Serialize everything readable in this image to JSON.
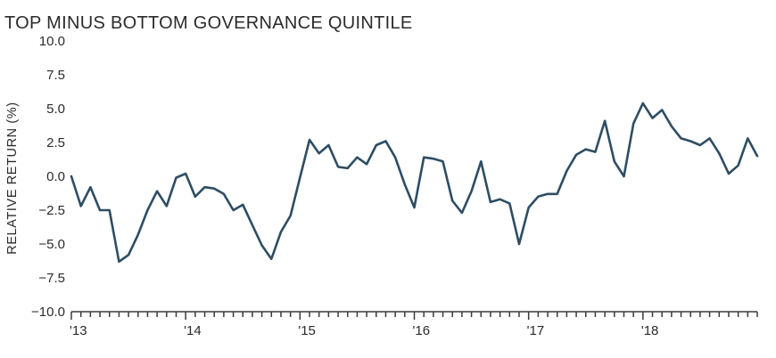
{
  "chart_data": {
    "type": "line",
    "title": "TOP MINUS BOTTOM GOVERNANCE QUINTILE",
    "xlabel": "",
    "ylabel": "RELATIVE RETURN (%)",
    "ylim": [
      -10.0,
      10.0
    ],
    "yticks": [
      "10.0",
      "7.5",
      "5.0",
      "2.5",
      "0.0",
      "−2.5",
      "−5.0",
      "−7.5",
      "−10.0"
    ],
    "ytick_values": [
      10.0,
      7.5,
      5.0,
      2.5,
      0.0,
      -2.5,
      -5.0,
      -7.5,
      -10.0
    ],
    "xtick_labels": [
      "'13",
      "'14",
      "'15",
      "'16",
      "'17",
      "'18"
    ],
    "xtick_label_index": [
      0,
      12,
      24,
      36,
      48,
      60
    ],
    "line_color": "#2e4d63",
    "series": [
      {
        "name": "Top minus bottom governance quintile",
        "values": [
          0.0,
          -2.2,
          -0.8,
          -2.5,
          -2.5,
          -6.3,
          -5.8,
          -4.3,
          -2.5,
          -1.1,
          -2.2,
          -0.1,
          0.2,
          -1.5,
          -0.8,
          -0.9,
          -1.3,
          -2.5,
          -2.1,
          -3.6,
          -5.1,
          -6.1,
          -4.1,
          -2.9,
          -0.1,
          2.7,
          1.7,
          2.3,
          0.7,
          0.6,
          1.4,
          0.9,
          2.3,
          2.6,
          1.4,
          -0.6,
          -2.3,
          1.4,
          1.3,
          1.1,
          -1.8,
          -2.7,
          -1.1,
          1.1,
          -1.9,
          -1.7,
          -2.0,
          -5.0,
          -2.3,
          -1.5,
          -1.3,
          -1.3,
          0.4,
          1.6,
          2.0,
          1.8,
          4.1,
          1.1,
          0.0,
          3.9,
          5.4,
          4.3,
          4.9,
          3.7,
          2.8,
          2.6,
          2.3,
          2.8,
          1.7,
          0.2,
          0.8,
          2.8,
          1.5
        ]
      }
    ]
  }
}
